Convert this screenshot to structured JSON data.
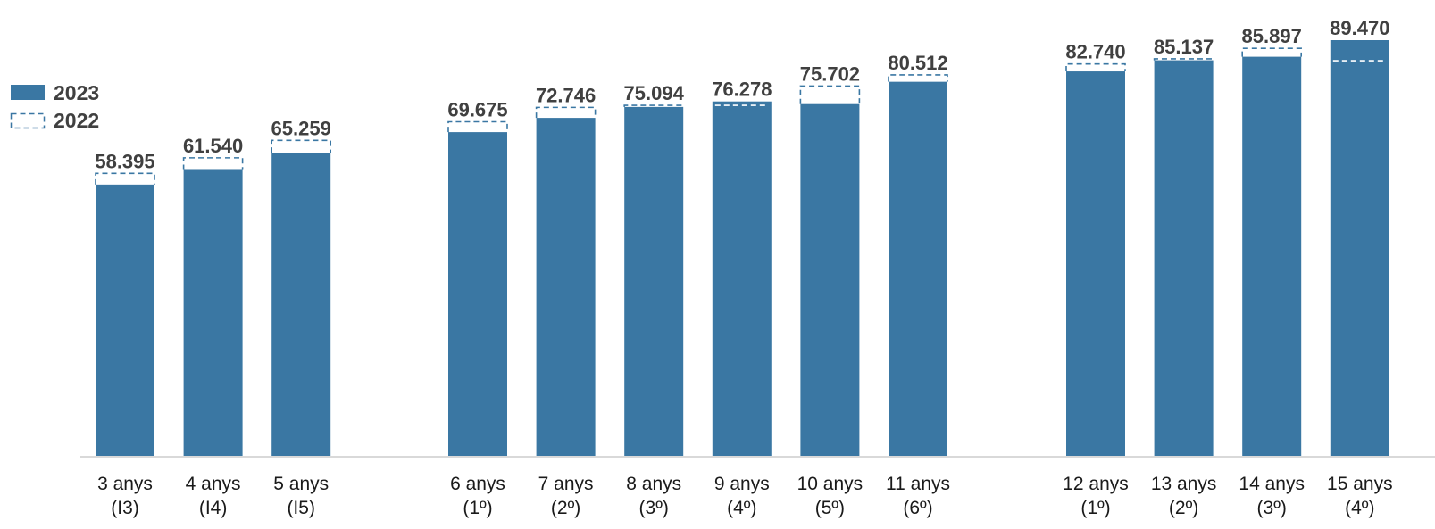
{
  "chart_data": {
    "type": "bar",
    "y_range": [
      0,
      90000
    ],
    "grid": false,
    "legend_placement": "left",
    "colors": {
      "current": "#3A77A3",
      "previous_outline": "#3A77A3",
      "axis": "#D9D9D9",
      "label": "#404040"
    },
    "series": [
      {
        "name": "2023",
        "style": "filled"
      },
      {
        "name": "2022",
        "style": "dashed-outline"
      }
    ],
    "groups": [
      {
        "categories": [
          {
            "line1": "3 anys",
            "line2": "(I3)"
          },
          {
            "line1": "4 anys",
            "line2": "(I4)"
          },
          {
            "line1": "5 anys",
            "line2": "(I5)"
          }
        ],
        "values_2023": [
          58395,
          61540,
          65259
        ],
        "values_2022": [
          60800,
          64150,
          67900
        ],
        "labels": [
          "58.395",
          "61.540",
          "65.259"
        ]
      },
      {
        "categories": [
          {
            "line1": "6 anys",
            "line2": "(1º)"
          },
          {
            "line1": "7 anys",
            "line2": "(2º)"
          },
          {
            "line1": "8 anys",
            "line2": "(3º)"
          },
          {
            "line1": "9 anys",
            "line2": "(4º)"
          },
          {
            "line1": "10 anys",
            "line2": "(5º)"
          },
          {
            "line1": "11 anys",
            "line2": "(6º)"
          }
        ],
        "values_2023": [
          69675,
          72746,
          75094,
          76278,
          75702,
          80512
        ],
        "values_2022": [
          71900,
          75000,
          75450,
          75450,
          79600,
          82000
        ],
        "labels": [
          "69.675",
          "72.746",
          "75.094",
          "76.278",
          "75.702",
          "80.512"
        ]
      },
      {
        "categories": [
          {
            "line1": "12 anys",
            "line2": "(1º)"
          },
          {
            "line1": "13 anys",
            "line2": "(2º)"
          },
          {
            "line1": "14 anys",
            "line2": "(3º)"
          },
          {
            "line1": "15 anys",
            "line2": "(4º)"
          }
        ],
        "values_2023": [
          82740,
          85137,
          85897,
          89470
        ],
        "values_2022": [
          84350,
          85450,
          87700,
          85050
        ],
        "labels": [
          "82.740",
          "85.137",
          "85.897",
          "89.470"
        ]
      }
    ]
  }
}
